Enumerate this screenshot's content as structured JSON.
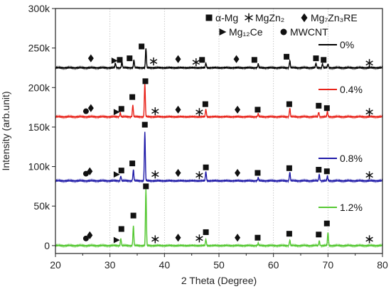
{
  "chart_data": {
    "type": "line",
    "title": "",
    "xlabel": "2 Theta (Degree)",
    "ylabel": "Intensity (arb.unit)",
    "xlim": [
      20,
      80
    ],
    "ylim": [
      -10000,
      300000
    ],
    "x_ticks": [
      "20",
      "30",
      "40",
      "50",
      "60",
      "70",
      "80"
    ],
    "y_ticks": [
      "0",
      "50k",
      "100k",
      "150k",
      "200k",
      "250k",
      "300k"
    ],
    "grid": "vertical dotted",
    "legend": {
      "placement": "top-right",
      "entries": [
        {
          "symbol": "square",
          "label": "α-Mg"
        },
        {
          "symbol": "star",
          "label": "MgZn₂"
        },
        {
          "symbol": "diamond",
          "label": "Mg₇Zn₃RE"
        },
        {
          "symbol": "triangle",
          "label": "Mg₁₂Ce"
        },
        {
          "symbol": "circle",
          "label": "MWCNT"
        }
      ]
    },
    "series": [
      {
        "name": "0%",
        "color": "#000000",
        "baseline": 225000,
        "peaks": [
          [
            31.0,
            6000
          ],
          [
            32.2,
            8000
          ],
          [
            34.4,
            10000
          ],
          [
            36.6,
            25000
          ],
          [
            47.6,
            6000
          ],
          [
            57.2,
            5000
          ],
          [
            63.0,
            9000
          ],
          [
            67.8,
            6000
          ],
          [
            69.0,
            5000
          ],
          [
            70.0,
            5000
          ]
        ],
        "markers": [
          {
            "x": 26.5,
            "y": 237000,
            "symbol": "diamond"
          },
          {
            "x": 30.8,
            "y": 234000,
            "symbol": "triangle"
          },
          {
            "x": 31.8,
            "y": 235000,
            "symbol": "square"
          },
          {
            "x": 33.6,
            "y": 237000,
            "symbol": "square"
          },
          {
            "x": 35.8,
            "y": 252000,
            "symbol": "square"
          },
          {
            "x": 38.0,
            "y": 233000,
            "symbol": "star"
          },
          {
            "x": 42.5,
            "y": 236000,
            "symbol": "diamond"
          },
          {
            "x": 45.8,
            "y": 232000,
            "symbol": "star"
          },
          {
            "x": 46.9,
            "y": 235000,
            "symbol": "square"
          },
          {
            "x": 53.2,
            "y": 236000,
            "symbol": "diamond"
          },
          {
            "x": 56.5,
            "y": 235000,
            "symbol": "square"
          },
          {
            "x": 62.4,
            "y": 239000,
            "symbol": "square"
          },
          {
            "x": 67.8,
            "y": 237000,
            "symbol": "square"
          },
          {
            "x": 69.2,
            "y": 235000,
            "symbol": "square"
          },
          {
            "x": 77.6,
            "y": 231000,
            "symbol": "star"
          }
        ]
      },
      {
        "name": "0.4%",
        "color": "#e8231a",
        "baseline": 163000,
        "peaks": [
          [
            31.9,
            5000
          ],
          [
            34.2,
            15000
          ],
          [
            36.4,
            43000
          ],
          [
            47.6,
            10000
          ],
          [
            57.2,
            4000
          ],
          [
            63.0,
            11000
          ],
          [
            68.3,
            6000
          ],
          [
            69.9,
            7000
          ]
        ],
        "markers": [
          {
            "x": 25.6,
            "y": 170000,
            "symbol": "circle"
          },
          {
            "x": 26.5,
            "y": 174000,
            "symbol": "diamond"
          },
          {
            "x": 31.2,
            "y": 169000,
            "symbol": "triangle"
          },
          {
            "x": 32.1,
            "y": 173000,
            "symbol": "square"
          },
          {
            "x": 34.1,
            "y": 188000,
            "symbol": "square"
          },
          {
            "x": 36.5,
            "y": 208000,
            "symbol": "square"
          },
          {
            "x": 38.3,
            "y": 170000,
            "symbol": "star"
          },
          {
            "x": 42.5,
            "y": 172000,
            "symbol": "diamond"
          },
          {
            "x": 46.4,
            "y": 169000,
            "symbol": "star"
          },
          {
            "x": 47.5,
            "y": 179000,
            "symbol": "square"
          },
          {
            "x": 53.4,
            "y": 172000,
            "symbol": "diamond"
          },
          {
            "x": 57.1,
            "y": 172000,
            "symbol": "square"
          },
          {
            "x": 62.9,
            "y": 179000,
            "symbol": "square"
          },
          {
            "x": 68.3,
            "y": 177000,
            "symbol": "square"
          },
          {
            "x": 69.8,
            "y": 174000,
            "symbol": "square"
          },
          {
            "x": 77.6,
            "y": 169000,
            "symbol": "star"
          }
        ]
      },
      {
        "name": "0.8%",
        "color": "#1f1aa8",
        "baseline": 82000,
        "peaks": [
          [
            32.0,
            6000
          ],
          [
            34.3,
            14000
          ],
          [
            36.4,
            62000
          ],
          [
            47.6,
            12000
          ],
          [
            57.2,
            4000
          ],
          [
            63.0,
            11000
          ],
          [
            68.4,
            8000
          ],
          [
            69.9,
            6000
          ]
        ],
        "markers": [
          {
            "x": 25.6,
            "y": 91000,
            "symbol": "circle"
          },
          {
            "x": 26.3,
            "y": 94000,
            "symbol": "diamond"
          },
          {
            "x": 31.2,
            "y": 90000,
            "symbol": "triangle"
          },
          {
            "x": 32.1,
            "y": 95000,
            "symbol": "square"
          },
          {
            "x": 34.1,
            "y": 104000,
            "symbol": "square"
          },
          {
            "x": 36.4,
            "y": 153000,
            "symbol": "square"
          },
          {
            "x": 38.3,
            "y": 90000,
            "symbol": "star"
          },
          {
            "x": 42.5,
            "y": 92000,
            "symbol": "diamond"
          },
          {
            "x": 46.4,
            "y": 89000,
            "symbol": "star"
          },
          {
            "x": 47.6,
            "y": 99000,
            "symbol": "square"
          },
          {
            "x": 53.4,
            "y": 92000,
            "symbol": "diamond"
          },
          {
            "x": 57.1,
            "y": 92000,
            "symbol": "square"
          },
          {
            "x": 62.9,
            "y": 98000,
            "symbol": "square"
          },
          {
            "x": 68.3,
            "y": 96000,
            "symbol": "square"
          },
          {
            "x": 69.8,
            "y": 94000,
            "symbol": "square"
          },
          {
            "x": 77.6,
            "y": 89000,
            "symbol": "star"
          }
        ]
      },
      {
        "name": "1.2%",
        "color": "#55c832",
        "baseline": 0,
        "peaks": [
          [
            32.0,
            9000
          ],
          [
            34.3,
            25000
          ],
          [
            36.6,
            72000
          ],
          [
            47.6,
            8000
          ],
          [
            57.2,
            3000
          ],
          [
            63.0,
            7000
          ],
          [
            68.4,
            6000
          ],
          [
            70.0,
            17000
          ]
        ],
        "markers": [
          {
            "x": 25.6,
            "y": 9000,
            "symbol": "circle"
          },
          {
            "x": 26.3,
            "y": 13000,
            "symbol": "diamond"
          },
          {
            "x": 31.2,
            "y": 7000,
            "symbol": "triangle"
          },
          {
            "x": 32.1,
            "y": 21000,
            "symbol": "square"
          },
          {
            "x": 34.3,
            "y": 38000,
            "symbol": "square"
          },
          {
            "x": 36.6,
            "y": 75000,
            "symbol": "square"
          },
          {
            "x": 38.3,
            "y": 8000,
            "symbol": "star"
          },
          {
            "x": 42.5,
            "y": 10000,
            "symbol": "diamond"
          },
          {
            "x": 46.4,
            "y": 9000,
            "symbol": "star"
          },
          {
            "x": 47.6,
            "y": 17000,
            "symbol": "square"
          },
          {
            "x": 53.4,
            "y": 10000,
            "symbol": "diamond"
          },
          {
            "x": 57.1,
            "y": 10000,
            "symbol": "square"
          },
          {
            "x": 62.9,
            "y": 15000,
            "symbol": "square"
          },
          {
            "x": 68.3,
            "y": 14000,
            "symbol": "square"
          },
          {
            "x": 69.8,
            "y": 28000,
            "symbol": "square"
          },
          {
            "x": 77.6,
            "y": 8000,
            "symbol": "star"
          }
        ]
      }
    ]
  }
}
